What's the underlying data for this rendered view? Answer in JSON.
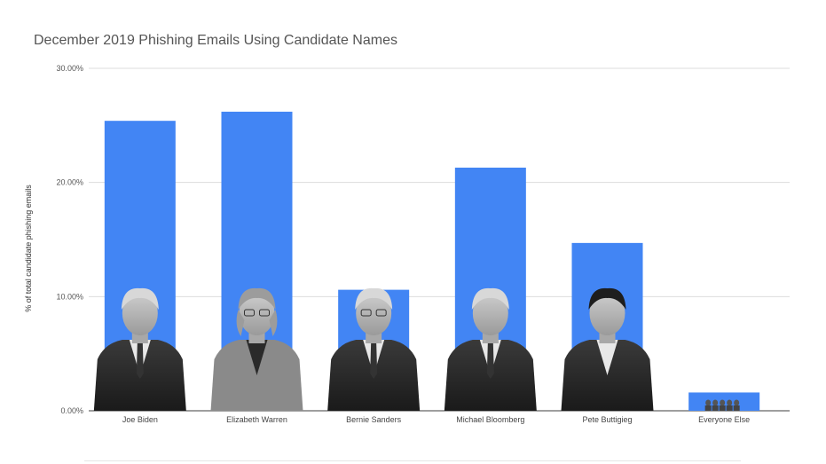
{
  "chart_data": {
    "type": "bar",
    "title": "December 2019 Phishing Emails Using Candidate Names",
    "xlabel": "",
    "ylabel": "% of total candidate phishing emails",
    "categories": [
      "Joe Biden",
      "Elizabeth Warren",
      "Bernie Sanders",
      "Michael Bloomberg",
      "Pete Buttigieg",
      "Everyone Else"
    ],
    "values": [
      25.4,
      26.2,
      10.6,
      21.3,
      14.7,
      1.6
    ],
    "ylim": [
      0,
      30
    ],
    "yticks": [
      "0.00%",
      "10.00%",
      "20.00%",
      "30.00%"
    ],
    "grid": true,
    "bar_color": "#4285f4",
    "legend": "none"
  }
}
